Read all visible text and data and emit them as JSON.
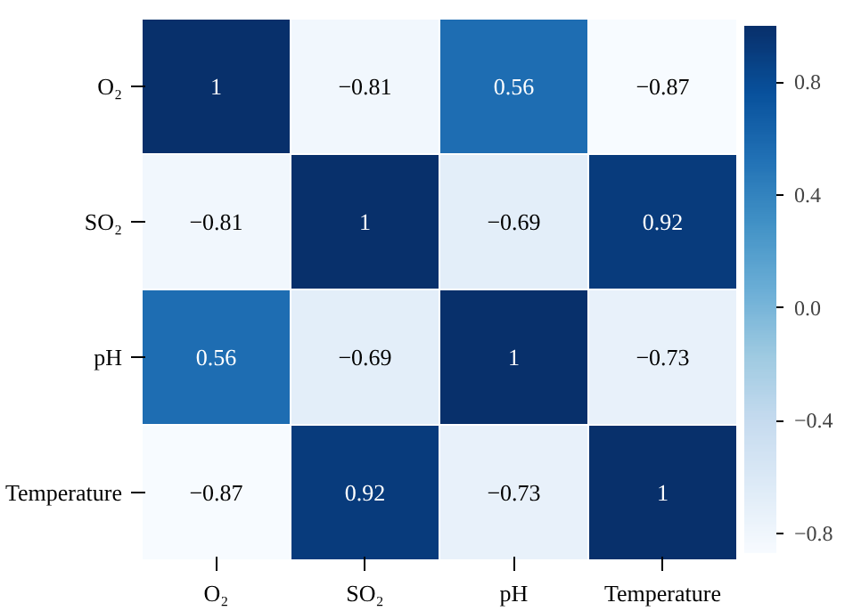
{
  "chart_data": {
    "type": "heatmap",
    "categories": [
      "O₂",
      "SO₂",
      "pH",
      "Temperature"
    ],
    "y_categories": [
      "O₂",
      "SO₂",
      "pH",
      "Temperature"
    ],
    "cells": [
      [
        1,
        -0.81,
        0.56,
        -0.87
      ],
      [
        -0.81,
        1,
        -0.69,
        0.92
      ],
      [
        0.56,
        -0.69,
        1,
        -0.73
      ],
      [
        -0.87,
        0.92,
        -0.73,
        1
      ]
    ],
    "cell_labels": [
      [
        "1",
        "−0.81",
        "0.56",
        "−0.87"
      ],
      [
        "−0.81",
        "1",
        "−0.69",
        "0.92"
      ],
      [
        "0.56",
        "−0.69",
        "1",
        "−0.73"
      ],
      [
        "−0.87",
        "0.92",
        "−0.73",
        "1"
      ]
    ],
    "clim": [
      -0.87,
      1
    ],
    "cticks": [
      {
        "value": -0.8,
        "label": "−0.8"
      },
      {
        "value": -0.4,
        "label": "−0.4"
      },
      {
        "value": 0,
        "label": "0.0"
      },
      0.4,
      0.8
    ]
  }
}
